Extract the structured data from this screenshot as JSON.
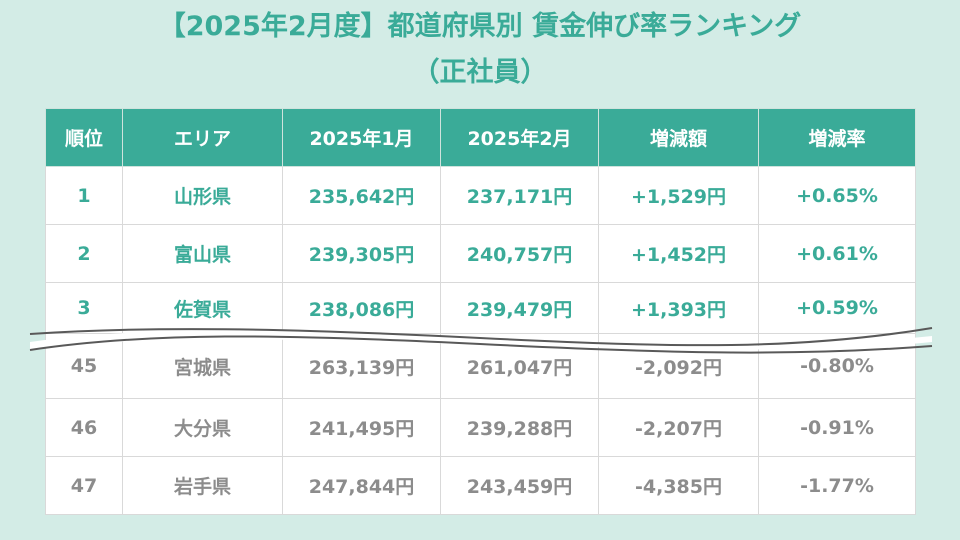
{
  "title": {
    "line1": "【2025年2月度】都道府県別 賃金伸び率ランキング",
    "line2": "（正社員）"
  },
  "table": {
    "headers": [
      "順位",
      "エリア",
      "2025年1月",
      "2025年2月",
      "増減額",
      "増減率"
    ],
    "top_rows": [
      [
        "1",
        "山形県",
        "235,642円",
        "237,171円",
        "+1,529円",
        "+0.65%"
      ],
      [
        "2",
        "富山県",
        "239,305円",
        "240,757円",
        "+1,452円",
        "+0.61%"
      ],
      [
        "3",
        "佐賀県",
        "238,086円",
        "239,479円",
        "+1,393円",
        "+0.59%"
      ]
    ],
    "bottom_rows": [
      [
        "45",
        "宮城県",
        "263,139円",
        "261,047円",
        "-2,092円",
        "-0.80%"
      ],
      [
        "46",
        "大分県",
        "241,495円",
        "239,288円",
        "-2,207円",
        "-0.91%"
      ],
      [
        "47",
        "岩手県",
        "247,844円",
        "243,459円",
        "-4,385円",
        "-1.77%"
      ]
    ]
  },
  "colors": {
    "background": "#d3ece6",
    "accent": "#3aab98",
    "muted_text": "#8c8c8c"
  }
}
